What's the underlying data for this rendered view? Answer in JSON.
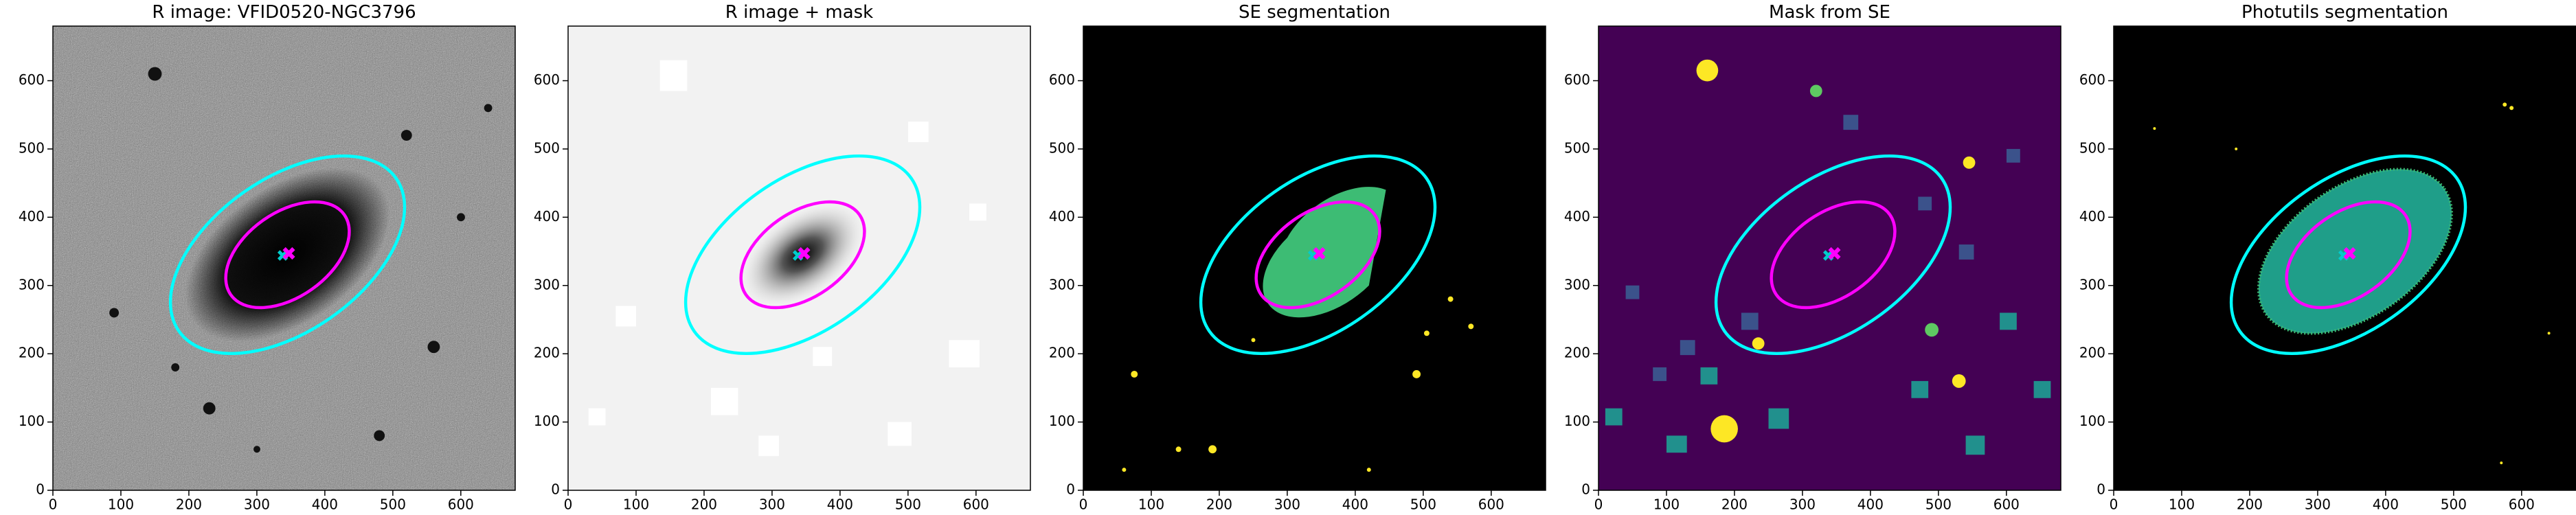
{
  "chart_data": [
    {
      "type": "image",
      "title": "R image: VFID0520-NGC3796",
      "xlim": [
        0,
        680
      ],
      "ylim": [
        0,
        680
      ],
      "xticks": [
        0,
        100,
        200,
        300,
        400,
        500,
        600
      ],
      "yticks": [
        0,
        100,
        200,
        300,
        400,
        500,
        600
      ]
    },
    {
      "type": "image",
      "title": "R image + mask",
      "xlim": [
        0,
        680
      ],
      "ylim": [
        0,
        680
      ],
      "xticks": [
        0,
        100,
        200,
        300,
        400,
        500,
        600
      ],
      "yticks": [
        0,
        100,
        200,
        300,
        400,
        500,
        600
      ]
    },
    {
      "type": "image",
      "title": "SE segmentation",
      "xlim": [
        0,
        680
      ],
      "ylim": [
        0,
        680
      ],
      "xticks": [
        0,
        100,
        200,
        300,
        400,
        500,
        600
      ],
      "yticks": [
        0,
        100,
        200,
        300,
        400,
        500,
        600
      ]
    },
    {
      "type": "image",
      "title": "Mask from SE",
      "xlim": [
        0,
        680
      ],
      "ylim": [
        0,
        680
      ],
      "xticks": [
        0,
        100,
        200,
        300,
        400,
        500,
        600
      ],
      "yticks": [
        0,
        100,
        200,
        300,
        400,
        500,
        600
      ]
    },
    {
      "type": "image",
      "title": "Photutils segmentation",
      "xlim": [
        0,
        680
      ],
      "ylim": [
        0,
        680
      ],
      "xticks": [
        0,
        100,
        200,
        300,
        400,
        500,
        600
      ],
      "yticks": [
        0,
        100,
        200,
        300,
        400,
        500,
        600
      ]
    }
  ]
}
